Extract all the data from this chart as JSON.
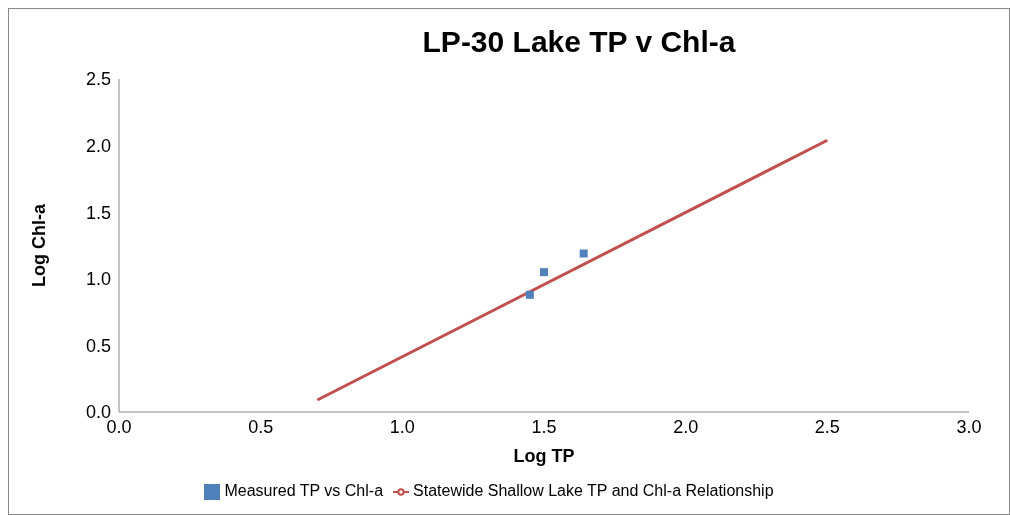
{
  "chart_data": {
    "type": "scatter",
    "title": "LP-30 Lake TP v Chl-a",
    "xlabel": "Log TP",
    "ylabel": "Log Chl-a",
    "xlim": [
      0,
      3
    ],
    "xticks": [
      {
        "value": 0,
        "label": "0.0"
      },
      0.5,
      {
        "value": 1,
        "label": "1.0"
      },
      1.5,
      {
        "value": 2,
        "label": "2.0"
      },
      2.5,
      {
        "value": 3,
        "label": "3.0"
      }
    ],
    "ylim": [
      0,
      2.5
    ],
    "yticks": [
      {
        "value": 0,
        "label": "0.0"
      },
      0.5,
      {
        "value": 1,
        "label": "1.0"
      },
      1.5,
      {
        "value": 2,
        "label": "2.0"
      },
      2.5
    ],
    "grid": false,
    "legend": "bottom",
    "series": [
      {
        "name": "Measured TP vs Chl-a",
        "marker": "square",
        "color": "#4f81bd",
        "x": [
          1.45,
          1.5,
          1.64
        ],
        "values": [
          0.88,
          1.05,
          1.19
        ]
      },
      {
        "name": "Statewide Shallow Lake TP and Chl-a Relationship",
        "type": "line",
        "color": "#c0504d",
        "x": [
          0.7,
          2.5
        ],
        "values": [
          0.09,
          2.04
        ]
      }
    ]
  }
}
